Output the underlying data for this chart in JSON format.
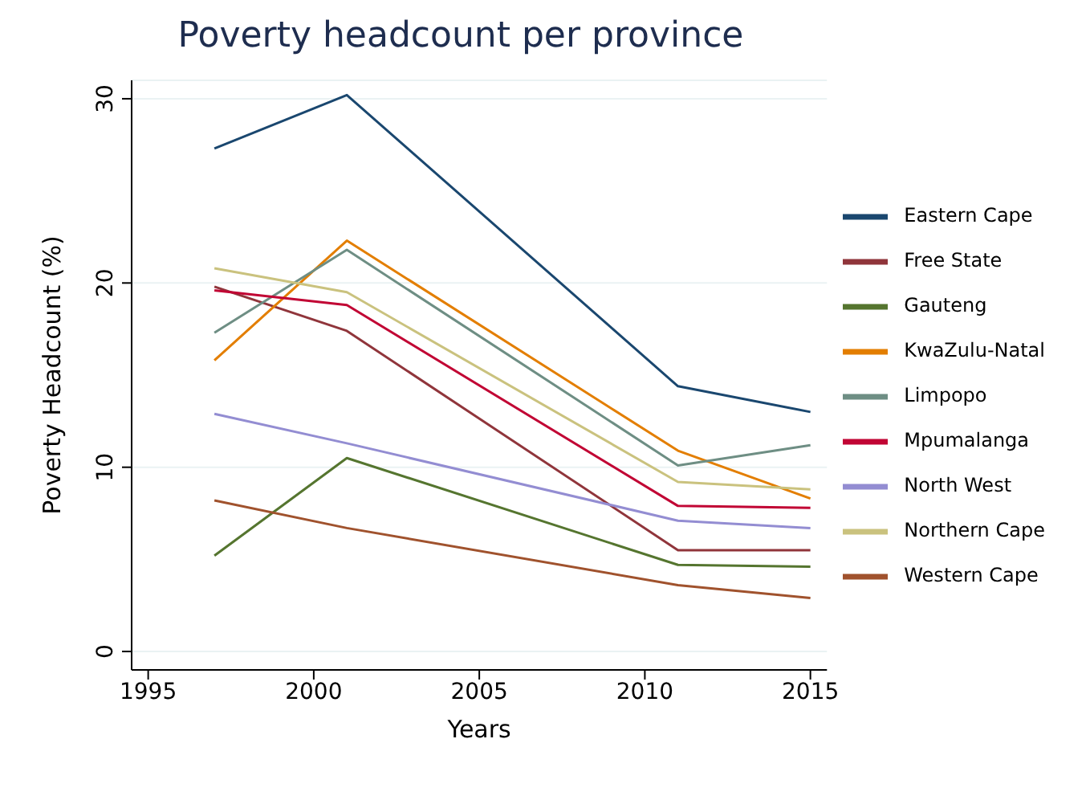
{
  "chart_data": {
    "type": "line",
    "title": "Poverty headcount per province",
    "xlabel": "Years",
    "ylabel": "Poverty Headcount (%)",
    "x": [
      1997,
      2001,
      2011,
      2015
    ],
    "series": [
      {
        "name": "Eastern Cape",
        "color": "#1a476f",
        "values": [
          27.3,
          30.2,
          14.4,
          13.0
        ]
      },
      {
        "name": "Free State",
        "color": "#90353b",
        "values": [
          19.8,
          17.4,
          5.5,
          5.5
        ]
      },
      {
        "name": "Gauteng",
        "color": "#55752f",
        "values": [
          5.2,
          10.5,
          4.7,
          4.6
        ]
      },
      {
        "name": "KwaZulu-Natal",
        "color": "#e37e00",
        "values": [
          15.8,
          22.3,
          10.9,
          8.3
        ]
      },
      {
        "name": "Limpopo",
        "color": "#6e8e84",
        "values": [
          17.3,
          21.8,
          10.1,
          11.2
        ]
      },
      {
        "name": "Mpumalanga",
        "color": "#c10534",
        "values": [
          19.6,
          18.8,
          7.9,
          7.8
        ]
      },
      {
        "name": "North West",
        "color": "#938dd2",
        "values": [
          12.9,
          11.3,
          7.1,
          6.7
        ]
      },
      {
        "name": "Northern Cape",
        "color": "#cac27e",
        "values": [
          20.8,
          19.5,
          9.2,
          8.8
        ]
      },
      {
        "name": "Western Cape",
        "color": "#a0522d",
        "values": [
          8.2,
          6.7,
          3.6,
          2.9
        ]
      }
    ],
    "xlim": [
      1994.5,
      2015.5
    ],
    "xticks": [
      1995,
      2000,
      2005,
      2010,
      2015
    ],
    "ylim": [
      -1,
      31
    ],
    "yticks": [
      0,
      10,
      20,
      30
    ],
    "grid": "y",
    "legend": "right",
    "marker": "none",
    "line_style": "solid"
  }
}
